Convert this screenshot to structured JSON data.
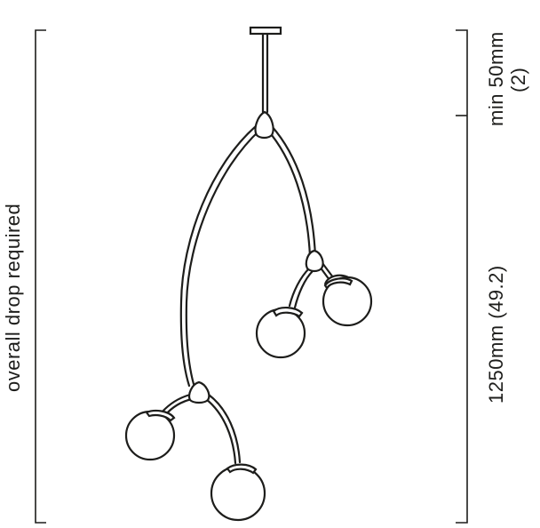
{
  "labels": {
    "overall_drop": "overall drop required",
    "drop_length": "1250mm (49.2)",
    "min_ceiling": "min 50mm",
    "min_ceiling_inch": "(2)"
  },
  "colors": {
    "line": "#1d1d1b",
    "background": "#ffffff"
  }
}
